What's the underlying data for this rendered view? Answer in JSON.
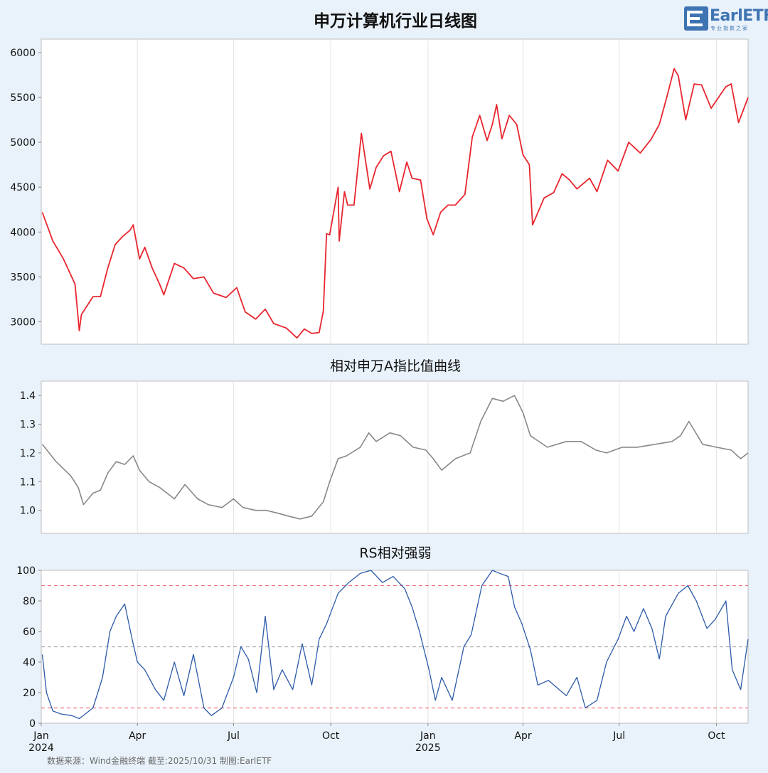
{
  "logo": {
    "text": "EarlETF",
    "subtext": "专业指数之家"
  },
  "source": "数据来源：Wind金融终端 截至:2025/10/31 制图:EarlETF",
  "colors": {
    "index_line": "#e8252e",
    "ratio_line": "#888888",
    "rs_line": "#2c5aa8",
    "threshold_line": "#f07080",
    "mid_line": "#aaaaaa",
    "grid": "#e3e3e3"
  },
  "x_axis": {
    "ticks": [
      {
        "label": "Jan",
        "year": "2024",
        "date": "2024-01-01"
      },
      {
        "label": "Apr",
        "year": "",
        "date": "2024-04-01"
      },
      {
        "label": "Jul",
        "year": "",
        "date": "2024-07-01"
      },
      {
        "label": "Oct",
        "year": "",
        "date": "2024-10-01"
      },
      {
        "label": "Jan",
        "year": "2025",
        "date": "2025-01-01"
      },
      {
        "label": "Apr",
        "year": "",
        "date": "2025-04-01"
      },
      {
        "label": "Jul",
        "year": "",
        "date": "2025-07-01"
      },
      {
        "label": "Oct",
        "year": "",
        "date": "2025-10-01"
      }
    ],
    "range": [
      "2024-01-01",
      "2025-10-31"
    ]
  },
  "chart_data": [
    {
      "type": "line",
      "title": "申万计算机行业日线图",
      "ylim": [
        2750,
        6150
      ],
      "yticks": [
        3000,
        3500,
        4000,
        4500,
        5000,
        5500,
        6000
      ],
      "grid": "x",
      "series": [
        {
          "x": [
            "2024-01-02",
            "2024-01-12",
            "2024-01-22",
            "2024-02-02",
            "2024-02-06",
            "2024-02-08",
            "2024-02-19",
            "2024-02-26",
            "2024-03-04",
            "2024-03-11",
            "2024-03-18",
            "2024-03-25",
            "2024-03-28",
            "2024-04-03",
            "2024-04-08",
            "2024-04-15",
            "2024-04-22",
            "2024-04-26",
            "2024-05-06",
            "2024-05-15",
            "2024-05-24",
            "2024-06-03",
            "2024-06-12",
            "2024-06-24",
            "2024-07-04",
            "2024-07-12",
            "2024-07-22",
            "2024-07-31",
            "2024-08-08",
            "2024-08-20",
            "2024-08-30",
            "2024-09-06",
            "2024-09-13",
            "2024-09-20",
            "2024-09-24",
            "2024-09-27",
            "2024-09-30",
            "2024-10-08",
            "2024-10-09",
            "2024-10-14",
            "2024-10-17",
            "2024-10-23",
            "2024-10-30",
            "2024-11-07",
            "2024-11-13",
            "2024-11-20",
            "2024-11-27",
            "2024-12-05",
            "2024-12-12",
            "2024-12-17",
            "2024-12-25",
            "2024-12-31",
            "2025-01-06",
            "2025-01-13",
            "2025-01-20",
            "2025-01-27",
            "2025-02-05",
            "2025-02-12",
            "2025-02-19",
            "2025-02-26",
            "2025-03-03",
            "2025-03-07",
            "2025-03-12",
            "2025-03-19",
            "2025-03-26",
            "2025-04-01",
            "2025-04-07",
            "2025-04-10",
            "2025-04-21",
            "2025-04-30",
            "2025-05-08",
            "2025-05-15",
            "2025-05-22",
            "2025-06-03",
            "2025-06-10",
            "2025-06-20",
            "2025-06-30",
            "2025-07-10",
            "2025-07-21",
            "2025-07-31",
            "2025-08-08",
            "2025-08-15",
            "2025-08-22",
            "2025-08-26",
            "2025-09-02",
            "2025-09-10",
            "2025-09-17",
            "2025-09-26",
            "2025-10-10",
            "2025-10-15",
            "2025-10-22",
            "2025-10-31"
          ],
          "values": [
            4220,
            3900,
            3700,
            3420,
            2900,
            3080,
            3280,
            3280,
            3600,
            3860,
            3950,
            4020,
            4080,
            3700,
            3830,
            3600,
            3420,
            3300,
            3650,
            3600,
            3480,
            3500,
            3320,
            3270,
            3380,
            3110,
            3030,
            3140,
            2980,
            2930,
            2820,
            2920,
            2870,
            2880,
            3120,
            3980,
            3970,
            4500,
            3900,
            4450,
            4300,
            4300,
            5100,
            4480,
            4720,
            4850,
            4900,
            4450,
            4780,
            4600,
            4580,
            4150,
            3970,
            4220,
            4300,
            4300,
            4420,
            5060,
            5300,
            5020,
            5200,
            5420,
            5040,
            5300,
            5200,
            4860,
            4750,
            4080,
            4380,
            4440,
            4650,
            4580,
            4480,
            4600,
            4450,
            4800,
            4680,
            5000,
            4880,
            5030,
            5200,
            5500,
            5820,
            5740,
            5250,
            5650,
            5640,
            5380,
            5620,
            5650,
            5220,
            5500
          ]
        }
      ]
    },
    {
      "type": "line",
      "title": "相对申万A指比值曲线",
      "ylim": [
        0.92,
        1.45
      ],
      "yticks": [
        1.0,
        1.1,
        1.2,
        1.3,
        1.4
      ],
      "grid": "x",
      "series": [
        {
          "x": [
            "2024-01-02",
            "2024-01-15",
            "2024-01-29",
            "2024-02-05",
            "2024-02-10",
            "2024-02-19",
            "2024-02-26",
            "2024-03-04",
            "2024-03-12",
            "2024-03-20",
            "2024-03-28",
            "2024-04-03",
            "2024-04-12",
            "2024-04-22",
            "2024-05-06",
            "2024-05-16",
            "2024-05-28",
            "2024-06-07",
            "2024-06-20",
            "2024-07-01",
            "2024-07-10",
            "2024-07-22",
            "2024-08-01",
            "2024-08-12",
            "2024-08-22",
            "2024-09-02",
            "2024-09-13",
            "2024-09-24",
            "2024-09-30",
            "2024-10-08",
            "2024-10-16",
            "2024-10-29",
            "2024-11-06",
            "2024-11-13",
            "2024-11-26",
            "2024-12-06",
            "2024-12-18",
            "2024-12-30",
            "2025-01-06",
            "2025-01-14",
            "2025-01-27",
            "2025-02-10",
            "2025-02-20",
            "2025-03-03",
            "2025-03-13",
            "2025-03-24",
            "2025-04-01",
            "2025-04-08",
            "2025-04-24",
            "2025-05-12",
            "2025-05-26",
            "2025-06-09",
            "2025-06-19",
            "2025-07-04",
            "2025-07-18",
            "2025-08-04",
            "2025-08-20",
            "2025-08-28",
            "2025-09-05",
            "2025-09-18",
            "2025-10-01",
            "2025-10-15",
            "2025-10-24",
            "2025-10-31"
          ],
          "values": [
            1.23,
            1.17,
            1.12,
            1.08,
            1.02,
            1.06,
            1.07,
            1.13,
            1.17,
            1.16,
            1.19,
            1.14,
            1.1,
            1.08,
            1.04,
            1.09,
            1.04,
            1.02,
            1.01,
            1.04,
            1.01,
            1.0,
            1.0,
            0.99,
            0.98,
            0.97,
            0.98,
            1.03,
            1.1,
            1.18,
            1.19,
            1.22,
            1.27,
            1.24,
            1.27,
            1.26,
            1.22,
            1.21,
            1.18,
            1.14,
            1.18,
            1.2,
            1.31,
            1.39,
            1.38,
            1.4,
            1.34,
            1.26,
            1.22,
            1.24,
            1.24,
            1.21,
            1.2,
            1.22,
            1.22,
            1.23,
            1.24,
            1.26,
            1.31,
            1.23,
            1.22,
            1.21,
            1.18,
            1.2
          ]
        }
      ]
    },
    {
      "type": "line",
      "title": "RS相对强弱",
      "ylim": [
        0,
        100
      ],
      "yticks": [
        0,
        20,
        40,
        60,
        80,
        100
      ],
      "reference_lines": [
        90,
        50,
        10
      ],
      "grid": "x",
      "series": [
        {
          "x": [
            "2024-01-02",
            "2024-01-06",
            "2024-01-12",
            "2024-01-20",
            "2024-01-30",
            "2024-02-06",
            "2024-02-19",
            "2024-02-28",
            "2024-03-06",
            "2024-03-12",
            "2024-03-20",
            "2024-03-27",
            "2024-04-01",
            "2024-04-08",
            "2024-04-18",
            "2024-04-26",
            "2024-05-06",
            "2024-05-15",
            "2024-05-24",
            "2024-06-03",
            "2024-06-10",
            "2024-06-20",
            "2024-07-01",
            "2024-07-08",
            "2024-07-15",
            "2024-07-23",
            "2024-07-31",
            "2024-08-08",
            "2024-08-16",
            "2024-08-26",
            "2024-09-04",
            "2024-09-13",
            "2024-09-20",
            "2024-09-27",
            "2024-10-08",
            "2024-10-18",
            "2024-10-29",
            "2024-11-08",
            "2024-11-19",
            "2024-11-29",
            "2024-12-10",
            "2024-12-17",
            "2024-12-24",
            "2025-01-02",
            "2025-01-08",
            "2025-01-14",
            "2025-01-24",
            "2025-02-04",
            "2025-02-11",
            "2025-02-21",
            "2025-03-03",
            "2025-03-10",
            "2025-03-18",
            "2025-03-24",
            "2025-03-31",
            "2025-04-08",
            "2025-04-15",
            "2025-04-25",
            "2025-05-12",
            "2025-05-22",
            "2025-05-30",
            "2025-06-10",
            "2025-06-19",
            "2025-06-30",
            "2025-07-08",
            "2025-07-15",
            "2025-07-24",
            "2025-08-01",
            "2025-08-08",
            "2025-08-14",
            "2025-08-26",
            "2025-09-04",
            "2025-09-12",
            "2025-09-22",
            "2025-09-30",
            "2025-10-10",
            "2025-10-16",
            "2025-10-24",
            "2025-10-31"
          ],
          "values": [
            45,
            20,
            8,
            6,
            5,
            3,
            10,
            30,
            60,
            70,
            78,
            55,
            40,
            35,
            22,
            15,
            40,
            18,
            45,
            10,
            5,
            10,
            30,
            50,
            42,
            20,
            70,
            22,
            35,
            22,
            52,
            25,
            55,
            65,
            85,
            92,
            98,
            100,
            92,
            96,
            88,
            76,
            60,
            35,
            15,
            30,
            15,
            50,
            58,
            90,
            100,
            98,
            96,
            76,
            65,
            48,
            25,
            28,
            18,
            30,
            10,
            15,
            40,
            55,
            70,
            60,
            75,
            62,
            42,
            70,
            85,
            90,
            80,
            62,
            68,
            80,
            35,
            22,
            55
          ]
        }
      ]
    }
  ]
}
